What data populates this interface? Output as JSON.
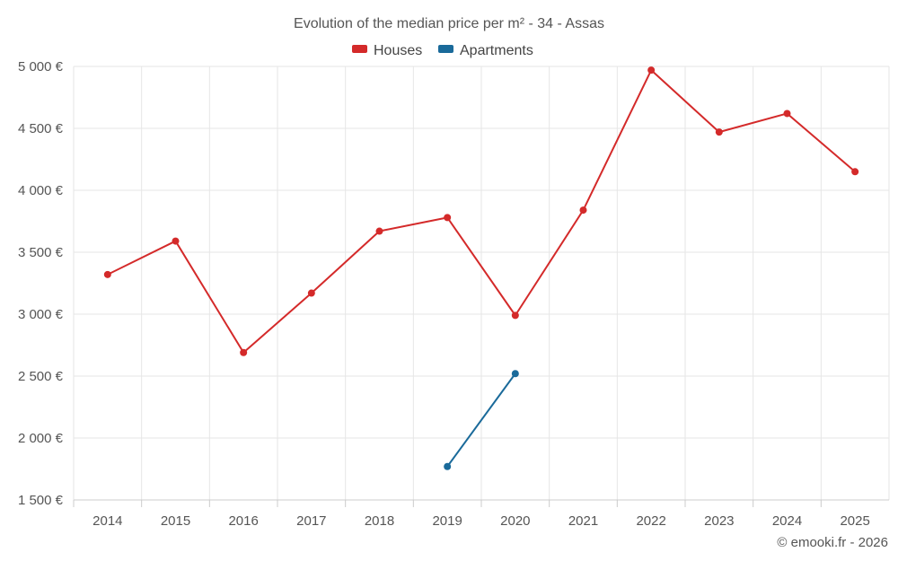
{
  "chart_data": {
    "type": "line",
    "title": "Evolution of the median price per m² - 34 - Assas",
    "categories": [
      "2014",
      "2015",
      "2016",
      "2017",
      "2018",
      "2019",
      "2020",
      "2021",
      "2022",
      "2023",
      "2024",
      "2025"
    ],
    "y_tick_labels": [
      "1 500 €",
      "2 000 €",
      "2 500 €",
      "3 000 €",
      "3 500 €",
      "4 000 €",
      "4 500 €",
      "5 000 €"
    ],
    "y_ticks": [
      1500,
      2000,
      2500,
      3000,
      3500,
      4000,
      4500,
      5000
    ],
    "ylim": [
      1500,
      5000
    ],
    "grid": true,
    "legend_position": "top-center",
    "series": [
      {
        "name": "Houses",
        "color": "#d42a2a",
        "values": [
          3320,
          3590,
          2690,
          3170,
          3670,
          3780,
          2990,
          3840,
          4970,
          4470,
          4620,
          4150
        ]
      },
      {
        "name": "Apartments",
        "color": "#1a6a9a",
        "values": [
          null,
          null,
          null,
          null,
          null,
          1770,
          2520,
          null,
          null,
          null,
          null,
          null
        ]
      }
    ],
    "credit": "© emooki.fr - 2026"
  }
}
